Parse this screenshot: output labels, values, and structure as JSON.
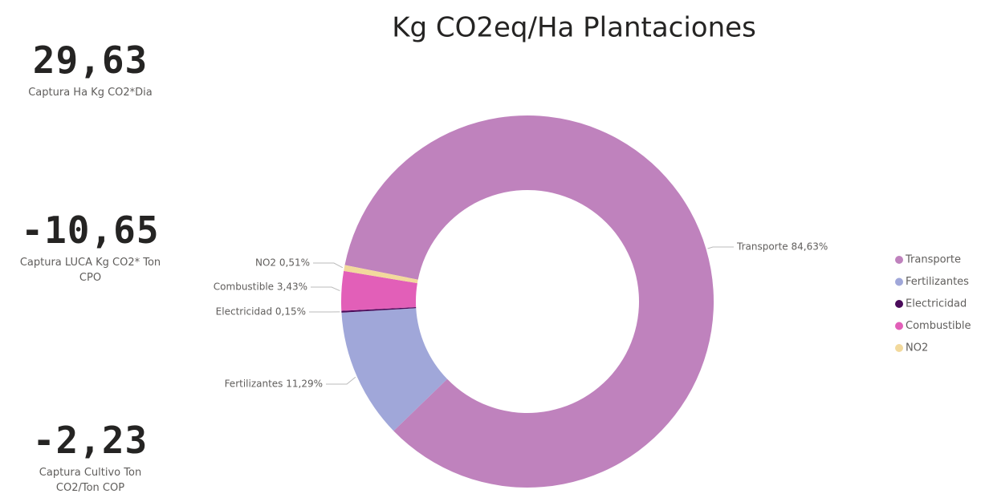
{
  "kpis": [
    {
      "value": "29,63",
      "label": "Captura Ha Kg CO2*Dia"
    },
    {
      "value": "-10,65",
      "label": "Captura LUCA Kg CO2* Ton CPO"
    },
    {
      "value": "-2,23",
      "label": "Captura Cultivo Ton CO2/Ton COP"
    }
  ],
  "chart_data": {
    "type": "donut",
    "title": "Kg CO2eq/Ha Plantaciones",
    "categories": [
      "Transporte",
      "Fertilizantes",
      "Electricidad",
      "Combustible",
      "NO2"
    ],
    "values": [
      84.63,
      11.29,
      0.15,
      3.43,
      0.51
    ],
    "value_labels": [
      "Transporte 84,63%",
      "Fertilizantes 11,29%",
      "Electricidad 0,15%",
      "Combustible 3,43%",
      "NO2 0,51%"
    ],
    "colors": [
      "#bf82bd",
      "#a0a7d9",
      "#4a0b5a",
      "#e25fb8",
      "#f2d99c"
    ],
    "legend": "right"
  }
}
